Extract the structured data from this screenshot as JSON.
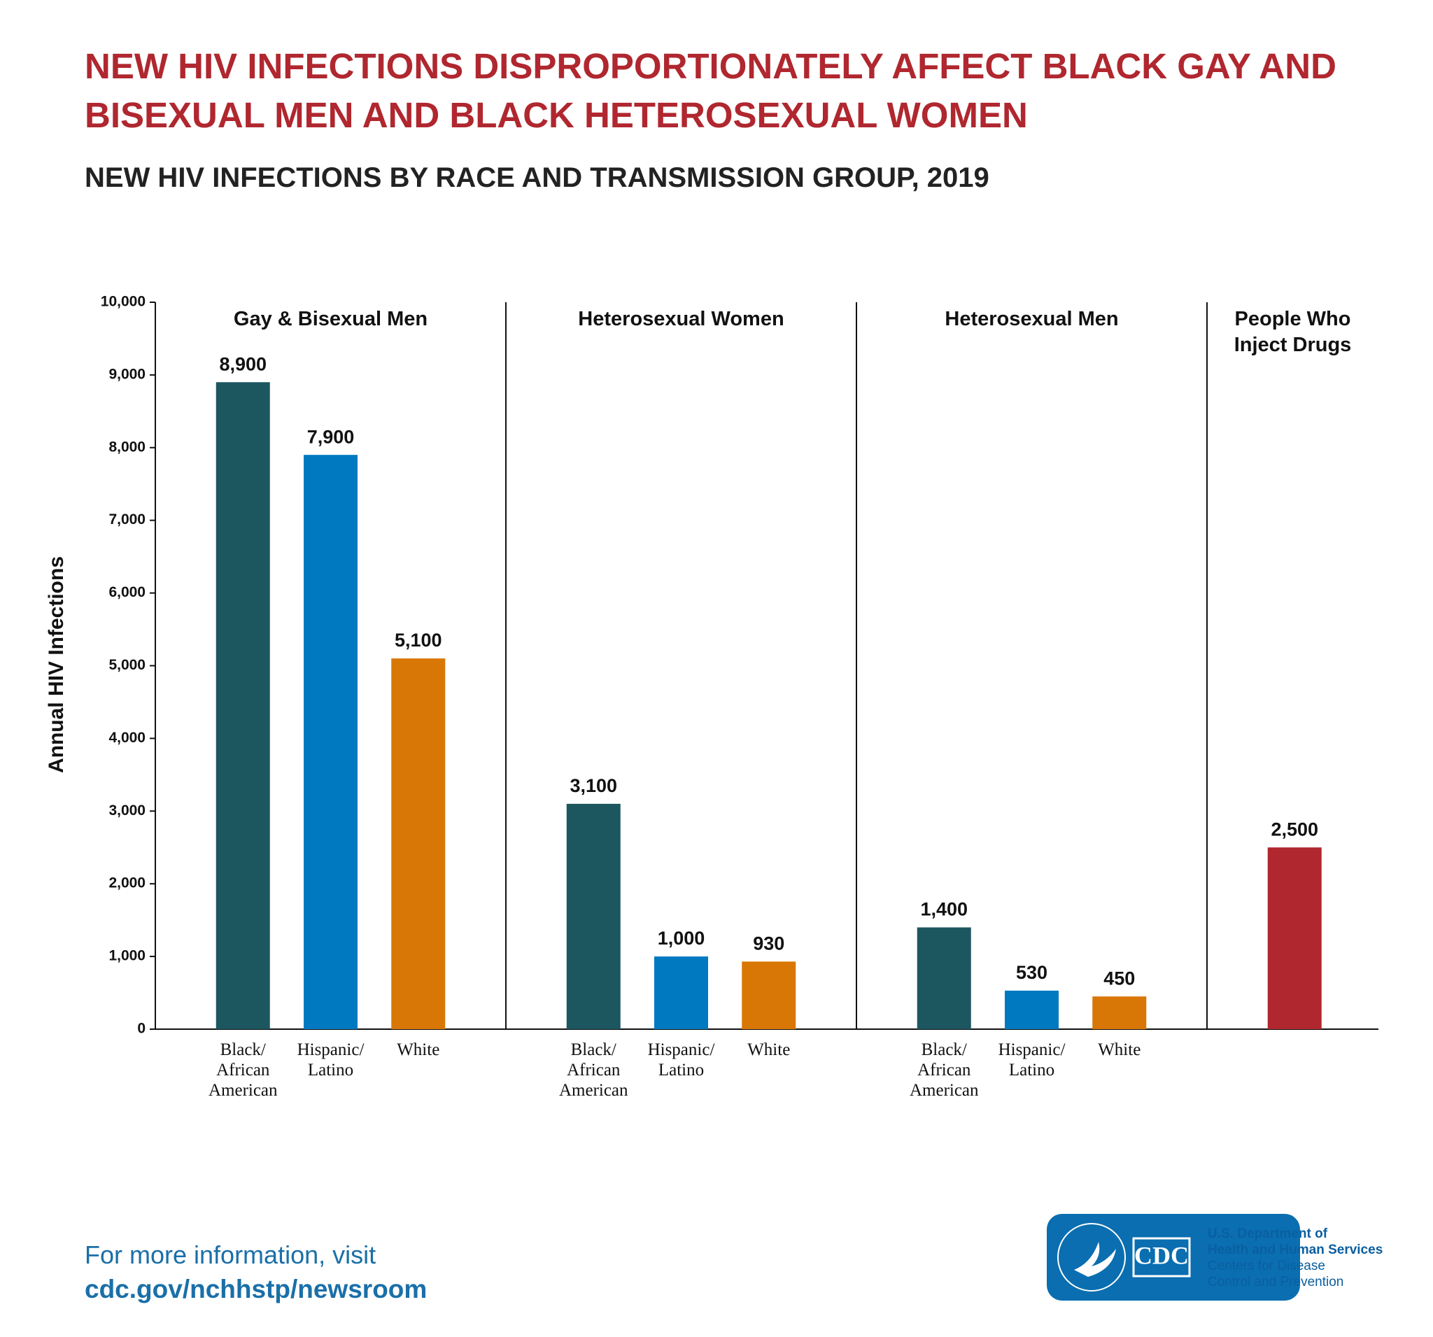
{
  "chart_data": {
    "type": "bar",
    "title": "NEW HIV INFECTIONS DISPROPORTIONATELY AFFECT BLACK GAY AND BISEXUAL MEN AND BLACK HETEROSEXUAL WOMEN",
    "subtitle": "NEW HIV INFECTIONS BY RACE AND TRANSMISSION GROUP, 2019",
    "y_label": "Annual HIV Infections",
    "ylim": [
      0,
      10000
    ],
    "yticks": [
      0,
      {
        "value": 1000,
        "label": "1,000"
      },
      {
        "value": 2000,
        "label": "2,000"
      },
      {
        "value": 3000,
        "label": "3,000"
      },
      {
        "value": 4000,
        "label": "4,000"
      },
      {
        "value": 5000,
        "label": "5,000"
      },
      {
        "value": 6000,
        "label": "6,000"
      },
      {
        "value": 7000,
        "label": "7,000"
      },
      {
        "value": 8000,
        "label": "8,000"
      },
      {
        "value": 9000,
        "label": "9,000"
      },
      {
        "value": 10000,
        "label": "10,000"
      }
    ],
    "groups": [
      {
        "name": "Gay & Bisexual Men",
        "categories": [
          "Black/ African American",
          "Hispanic/ Latino",
          "White"
        ],
        "values": [
          8900,
          7900,
          5100
        ],
        "value_labels": [
          "8,900",
          "7,900",
          "5,100"
        ],
        "colors": [
          "#1c5760",
          "#0079c1",
          "#d97706"
        ]
      },
      {
        "name": "Heterosexual Women",
        "categories": [
          "Black/ African American",
          "Hispanic/ Latino",
          "White"
        ],
        "values": [
          3100,
          1000,
          930
        ],
        "value_labels": [
          "3,100",
          "1,000",
          "930"
        ],
        "colors": [
          "#1c5760",
          "#0079c1",
          "#d97706"
        ]
      },
      {
        "name": "Heterosexual Men",
        "categories": [
          "Black/ African American",
          "Hispanic/ Latino",
          "White"
        ],
        "values": [
          1400,
          530,
          450
        ],
        "value_labels": [
          "1,400",
          "530",
          "450"
        ],
        "colors": [
          "#1c5760",
          "#0079c1",
          "#d97706"
        ]
      },
      {
        "name": "People Who Inject Drugs",
        "categories": [
          null
        ],
        "values": [
          2500
        ],
        "value_labels": [
          "2,500"
        ],
        "colors": [
          "#b0272f"
        ]
      }
    ]
  },
  "footer": {
    "line1": "For more information, visit",
    "line2": "cdc.gov/nchhstp/newsroom"
  },
  "logo": {
    "cdc": "CDC",
    "org_lines": [
      "U.S. Department of",
      "Health and Human Services",
      "Centers for Disease",
      "Control and Prevention"
    ]
  }
}
